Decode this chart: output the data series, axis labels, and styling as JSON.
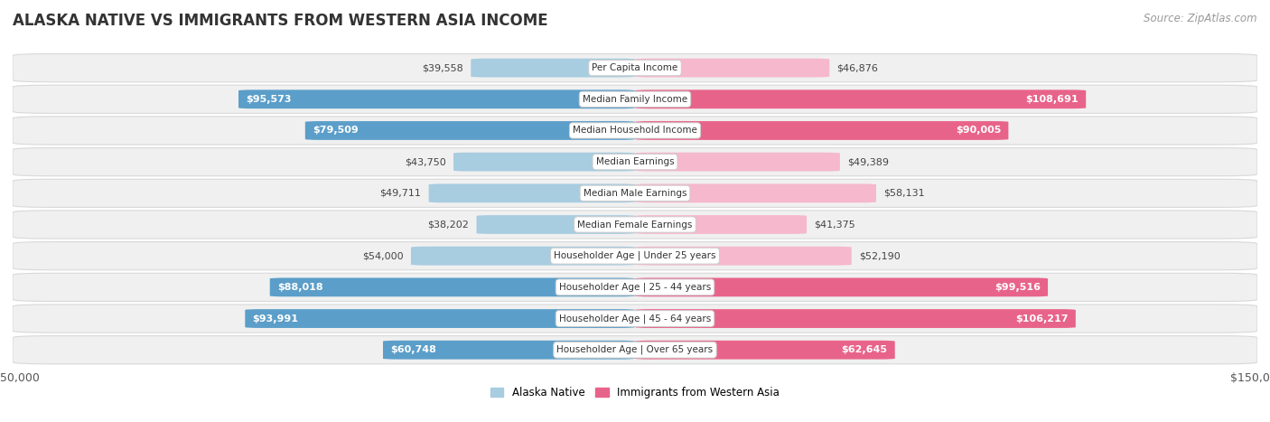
{
  "title": "ALASKA NATIVE VS IMMIGRANTS FROM WESTERN ASIA INCOME",
  "source": "Source: ZipAtlas.com",
  "categories": [
    "Per Capita Income",
    "Median Family Income",
    "Median Household Income",
    "Median Earnings",
    "Median Male Earnings",
    "Median Female Earnings",
    "Householder Age | Under 25 years",
    "Householder Age | 25 - 44 years",
    "Householder Age | 45 - 64 years",
    "Householder Age | Over 65 years"
  ],
  "alaska_native": [
    39558,
    95573,
    79509,
    43750,
    49711,
    38202,
    54000,
    88018,
    93991,
    60748
  ],
  "western_asia": [
    46876,
    108691,
    90005,
    49389,
    58131,
    41375,
    52190,
    99516,
    106217,
    62645
  ],
  "alaska_color_strong": "#5b9ec9",
  "alaska_color_light": "#a8cce0",
  "western_color_strong": "#e8638a",
  "western_color_light": "#f5b8cc",
  "row_bg_color": "#f0f0f0",
  "row_border_color": "#d8d8d8",
  "max_value": 150000,
  "alaska_label": "Alaska Native",
  "western_label": "Immigrants from Western Asia",
  "alaska_text_labels": [
    "$39,558",
    "$95,573",
    "$79,509",
    "$43,750",
    "$49,711",
    "$38,202",
    "$54,000",
    "$88,018",
    "$93,991",
    "$60,748"
  ],
  "western_text_labels": [
    "$46,876",
    "$108,691",
    "$90,005",
    "$49,389",
    "$58,131",
    "$41,375",
    "$52,190",
    "$99,516",
    "$106,217",
    "$62,645"
  ],
  "alaska_inside_threshold": 60000,
  "western_inside_threshold": 60000,
  "title_fontsize": 12,
  "source_fontsize": 8.5,
  "bar_label_fontsize": 8,
  "cat_label_fontsize": 7.5,
  "axis_label_fontsize": 9
}
